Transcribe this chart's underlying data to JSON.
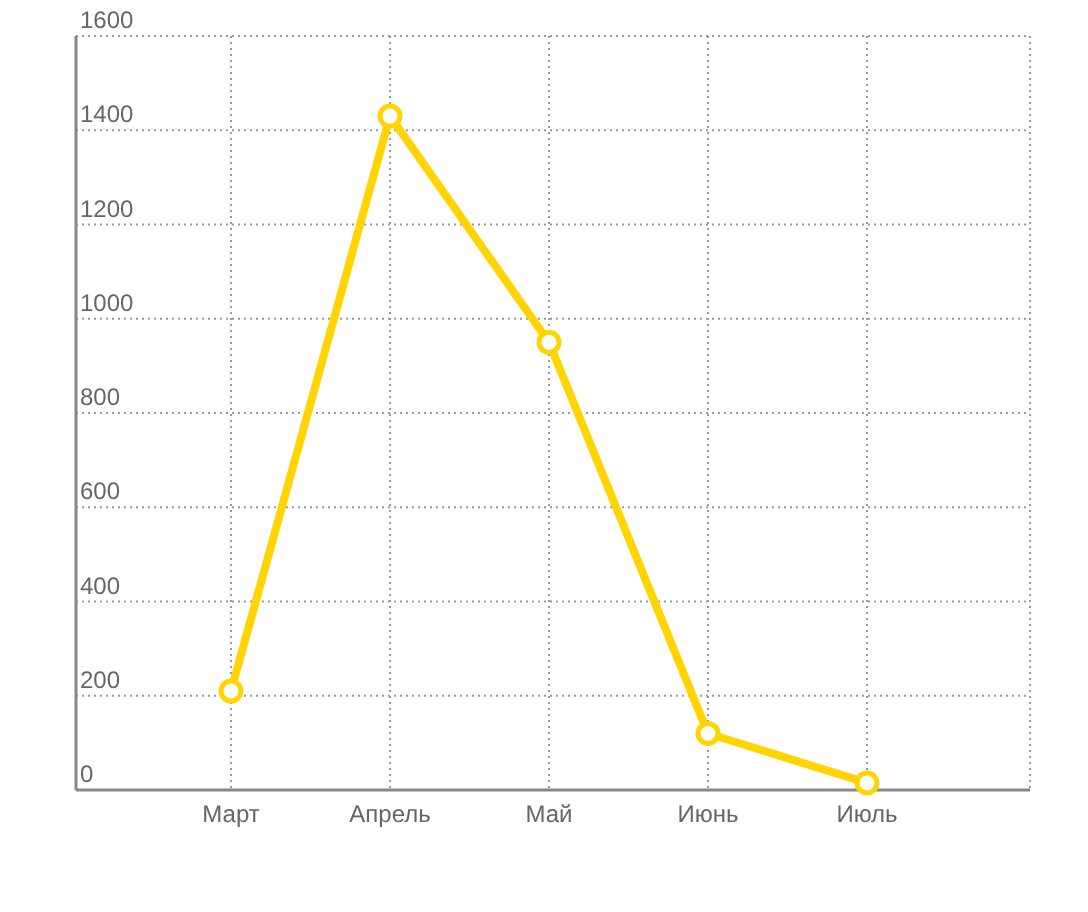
{
  "chart_data": {
    "type": "line",
    "categories": [
      "Март",
      "Апрель",
      "Май",
      "Июнь",
      "Июль"
    ],
    "series": [
      {
        "color": "#ffd400",
        "values": [
          210,
          1430,
          950,
          120,
          15
        ]
      }
    ],
    "ylim": [
      0,
      1600
    ],
    "yticks": [
      0,
      200,
      400,
      600,
      800,
      1000,
      1200,
      1400,
      1600
    ],
    "grid": true,
    "marker": "circle",
    "line_style": "solid"
  }
}
